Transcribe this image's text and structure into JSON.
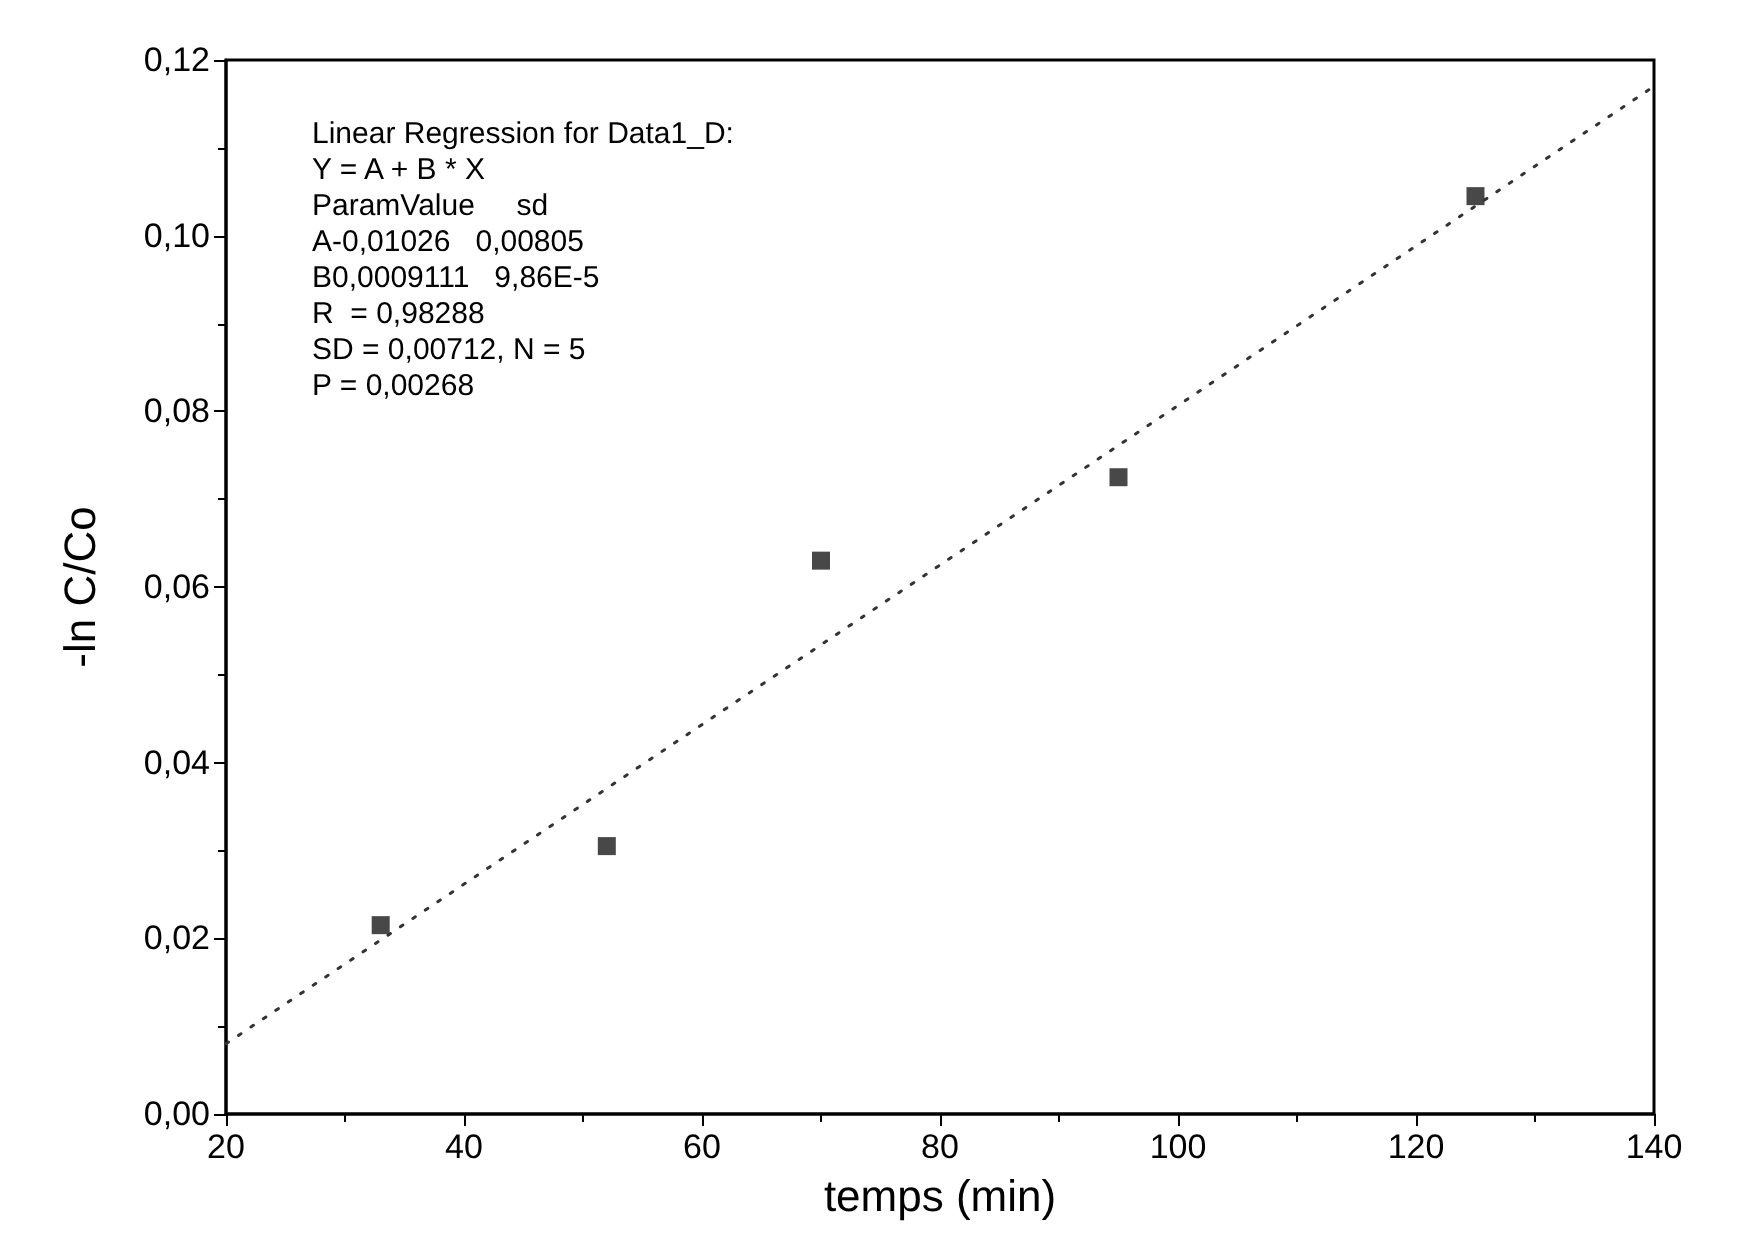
{
  "chart_data": {
    "type": "scatter",
    "xlabel": "temps (min)",
    "ylabel": "-ln C/Co",
    "xlim": [
      20,
      140
    ],
    "xticks": [
      20,
      40,
      60,
      80,
      100,
      120,
      140
    ],
    "ylim": [
      0,
      0.12
    ],
    "yticks": [
      {
        "value": 0,
        "label": "0,00"
      },
      {
        "value": 0.02,
        "label": "0,02"
      },
      {
        "value": 0.04,
        "label": "0,04"
      },
      {
        "value": 0.06,
        "label": "0,06"
      },
      {
        "value": 0.08,
        "label": "0,08"
      },
      {
        "value": 0.1,
        "label": "0,10"
      },
      {
        "value": 0.12,
        "label": "0,12"
      }
    ],
    "grid": false,
    "series": [
      {
        "color": "#1a1a1a",
        "marker": "square",
        "x": [
          33,
          52,
          70,
          95,
          125
        ],
        "values": [
          0.0215,
          0.0305,
          0.063,
          0.0725,
          0.1045
        ]
      },
      {
        "type": "line",
        "color": "#333333",
        "line_style": "dotted",
        "marker": "none",
        "x": [
          20,
          140
        ],
        "values": [
          0.008,
          0.117
        ]
      }
    ],
    "annotations": [
      "Linear Regression for Data1_D:",
      "Y = A + B * X",
      "ParamValue     sd",
      "A-0,01026   0,00805",
      "B0,0009111   9,86E-5",
      "R  = 0,98288",
      "SD = 0,00712, N = 5",
      "P = 0,00268"
    ]
  }
}
